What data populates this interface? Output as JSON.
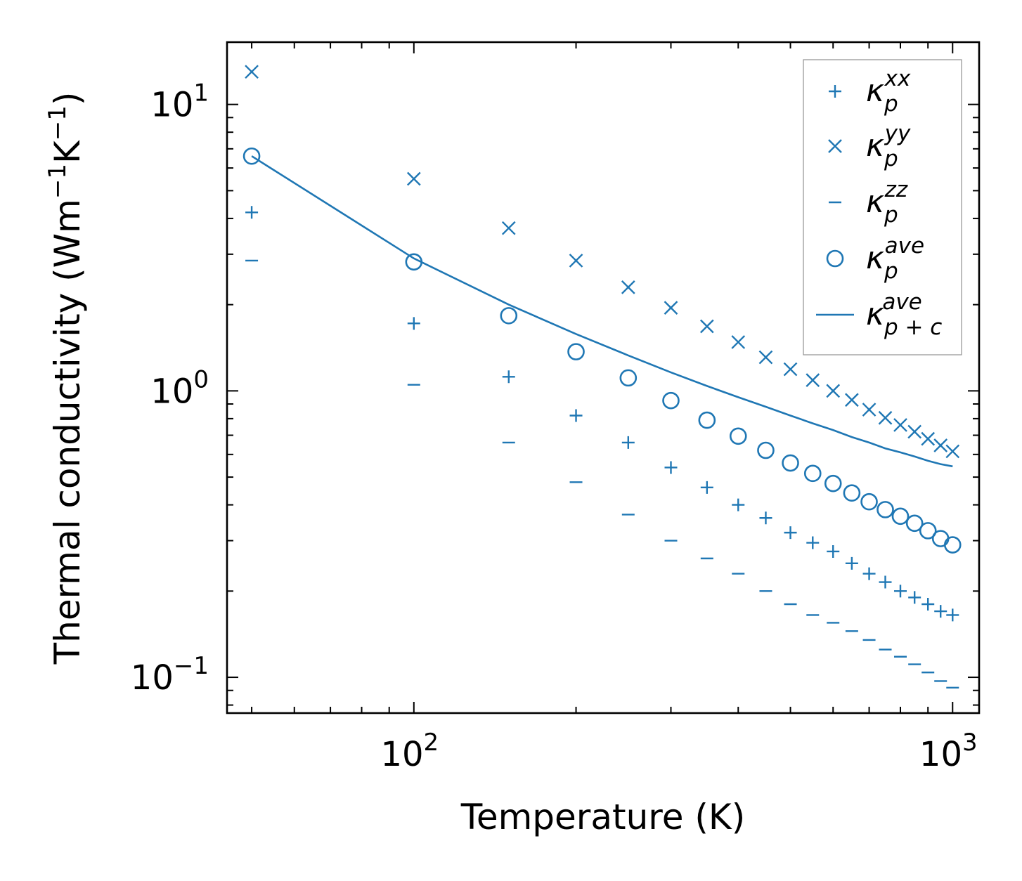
{
  "chart_data": {
    "type": "scatter",
    "xscale": "log",
    "yscale": "log",
    "xlim": [
      45,
      1120
    ],
    "ylim": [
      0.075,
      16.5
    ],
    "xlabel": "Temperature (K)",
    "ylabel": {
      "base": "Thermal conductivity (Wm",
      "exp1": "−1",
      "mid": "K",
      "exp2": "−1",
      "end": ")"
    },
    "x_ticks": [
      {
        "value": 100,
        "base": "10",
        "exp": "2"
      },
      {
        "value": 1000,
        "base": "10",
        "exp": "3"
      }
    ],
    "y_ticks": [
      {
        "value": 0.1,
        "base": "10",
        "exp": "−1"
      },
      {
        "value": 1,
        "base": "10",
        "exp": "0"
      },
      {
        "value": 10,
        "base": "10",
        "exp": "1"
      }
    ],
    "x": [
      50,
      100,
      150,
      200,
      250,
      300,
      350,
      400,
      450,
      500,
      550,
      600,
      650,
      700,
      750,
      800,
      850,
      900,
      950,
      1000
    ],
    "series": [
      {
        "name": "kappa_p_xx",
        "label": {
          "base": "κ",
          "sub": "p",
          "sup": "xx"
        },
        "marker": "plus",
        "values": [
          4.2,
          1.72,
          1.12,
          0.82,
          0.66,
          0.54,
          0.46,
          0.4,
          0.36,
          0.32,
          0.295,
          0.275,
          0.25,
          0.23,
          0.215,
          0.2,
          0.19,
          0.18,
          0.17,
          0.165
        ]
      },
      {
        "name": "kappa_p_yy",
        "label": {
          "base": "κ",
          "sub": "p",
          "sup": "yy"
        },
        "marker": "x",
        "values": [
          13.0,
          5.5,
          3.7,
          2.85,
          2.3,
          1.95,
          1.68,
          1.48,
          1.31,
          1.19,
          1.09,
          1.0,
          0.93,
          0.86,
          0.805,
          0.76,
          0.72,
          0.68,
          0.645,
          0.615
        ]
      },
      {
        "name": "kappa_p_zz",
        "label": {
          "base": "κ",
          "sub": "p",
          "sup": "zz"
        },
        "marker": "hline",
        "values": [
          2.85,
          1.05,
          0.66,
          0.48,
          0.37,
          0.3,
          0.26,
          0.23,
          0.2,
          0.18,
          0.165,
          0.155,
          0.145,
          0.135,
          0.125,
          0.118,
          0.111,
          0.104,
          0.097,
          0.092
        ]
      },
      {
        "name": "kappa_p_ave",
        "label": {
          "base": "κ",
          "sub": "p",
          "sup": "ave"
        },
        "marker": "circle",
        "values": [
          6.6,
          2.82,
          1.83,
          1.37,
          1.11,
          0.925,
          0.79,
          0.695,
          0.62,
          0.56,
          0.515,
          0.475,
          0.44,
          0.41,
          0.385,
          0.365,
          0.345,
          0.325,
          0.305,
          0.29
        ]
      },
      {
        "name": "kappa_p_c_ave",
        "label": {
          "base": "κ",
          "sub": "p + c",
          "sup": "ave"
        },
        "marker": "line",
        "values": [
          6.6,
          2.9,
          2.0,
          1.58,
          1.33,
          1.16,
          1.04,
          0.95,
          0.88,
          0.82,
          0.77,
          0.73,
          0.69,
          0.66,
          0.63,
          0.61,
          0.59,
          0.57,
          0.555,
          0.545
        ]
      }
    ],
    "legend": "top-right",
    "color": "#1f77b4",
    "grid": false
  }
}
